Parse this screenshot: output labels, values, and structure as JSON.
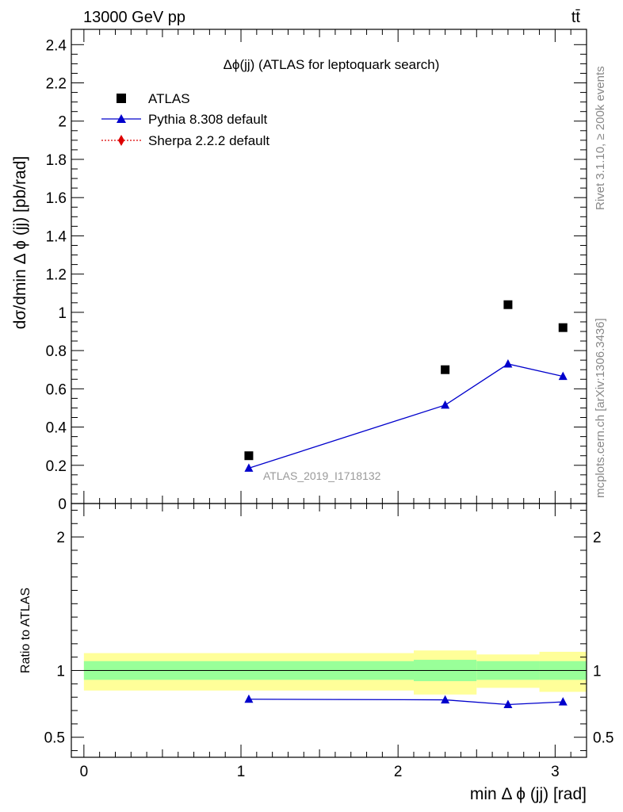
{
  "header": {
    "left": "13000 GeV pp",
    "right": "tt̄"
  },
  "side_labels": {
    "rivet": "Rivet 3.1.10, ≥ 200k events",
    "mcplots": "mcplots.cern.ch [arXiv:1306.3436]"
  },
  "colors": {
    "atlas": "#000000",
    "pythia": "#0000cc",
    "sherpa": "#dd0000",
    "band_inner": "#99ff99",
    "band_outer": "#ffff99",
    "watermark": "#999999"
  },
  "chart_data": [
    {
      "type": "scatter",
      "title": "Δϕ(jj) (ATLAS for leptoquark search)",
      "ylabel": "dσ/dmin Δ ϕ (jj) [pb/rad]",
      "xlim": [
        -0.08,
        3.2
      ],
      "ylim": [
        0,
        2.48
      ],
      "yticks": [
        0,
        0.2,
        0.4,
        0.6,
        0.8,
        1,
        1.2,
        1.4,
        1.6,
        1.8,
        2,
        2.2,
        2.4
      ],
      "ytick_labels": [
        "0",
        "0.2",
        "0.4",
        "0.6",
        "0.8",
        "1",
        "1.2",
        "1.4",
        "1.6",
        "1.8",
        "2",
        "2.2",
        "2.4"
      ],
      "watermark": "ATLAS_2019_I1718132",
      "legend_position": "top-left",
      "legend": [
        {
          "label": "ATLAS",
          "marker": "square"
        },
        {
          "label": "Pythia 8.308 default",
          "marker": "triangle"
        },
        {
          "label": "Sherpa 2.2.2 default",
          "marker": "diamond"
        }
      ],
      "series": [
        {
          "name": "ATLAS",
          "x": [
            1.05,
            2.3,
            2.7,
            3.05
          ],
          "y": [
            0.25,
            0.7,
            1.04,
            0.92
          ]
        },
        {
          "name": "Pythia 8.308 default",
          "x": [
            1.05,
            2.3,
            2.7,
            3.05
          ],
          "y": [
            0.185,
            0.515,
            0.73,
            0.665
          ],
          "yerr": [
            0.006,
            0.008,
            0.018,
            0.018
          ]
        },
        {
          "name": "Sherpa 2.2.2 default",
          "x": [],
          "y": []
        }
      ]
    },
    {
      "type": "line",
      "ylabel": "Ratio to ATLAS",
      "xlabel": "min Δ ϕ (jj) [rad]",
      "xlim": [
        -0.08,
        3.2
      ],
      "ylim": [
        0.35,
        2.25
      ],
      "xticks": [
        0,
        1,
        2,
        3
      ],
      "xtick_labels": [
        "0",
        "1",
        "2",
        "3"
      ],
      "yticks": [
        0.5,
        1,
        2
      ],
      "ytick_labels": [
        "0.5",
        "1",
        "2"
      ],
      "reference_line": 1,
      "bands": [
        {
          "x0": 0.0,
          "x1": 2.1,
          "inner": [
            0.93,
            1.07
          ],
          "outer": [
            0.85,
            1.13
          ]
        },
        {
          "x0": 2.1,
          "x1": 2.5,
          "inner": [
            0.92,
            1.08
          ],
          "outer": [
            0.82,
            1.15
          ]
        },
        {
          "x0": 2.5,
          "x1": 2.9,
          "inner": [
            0.93,
            1.07
          ],
          "outer": [
            0.87,
            1.12
          ]
        },
        {
          "x0": 2.9,
          "x1": 3.2,
          "inner": [
            0.93,
            1.07
          ],
          "outer": [
            0.84,
            1.14
          ]
        }
      ],
      "series": [
        {
          "name": "Pythia 8.308 default",
          "x": [
            1.05,
            2.3,
            2.7,
            3.05
          ],
          "y": [
            0.785,
            0.78,
            0.745,
            0.765
          ],
          "yerr": [
            0.01,
            0.02,
            0.02,
            0.02
          ]
        }
      ]
    }
  ]
}
